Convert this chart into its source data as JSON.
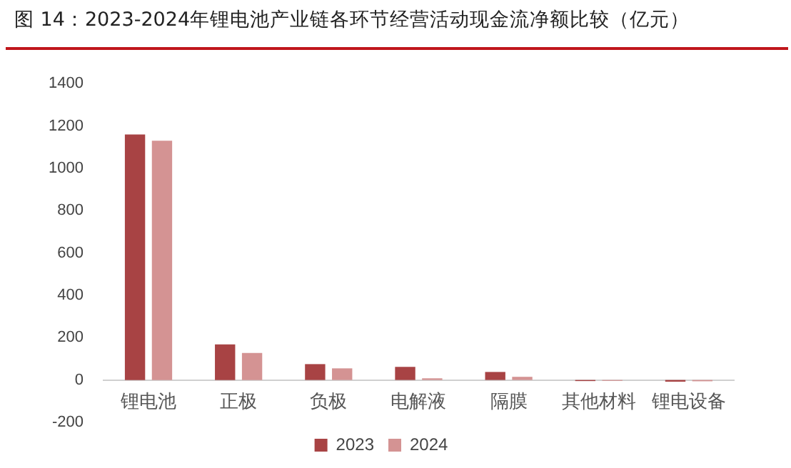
{
  "chart_data": {
    "type": "bar",
    "title": "图 14：2023-2024年锂电池产业链各环节经营活动现金流净额比较（亿元）",
    "categories": [
      "锂电池",
      "正极",
      "负极",
      "电解液",
      "隔膜",
      "其他材料",
      "锂电设备"
    ],
    "series": [
      {
        "name": "2023",
        "color": "#a84344",
        "values": [
          1160,
          168,
          75,
          62,
          38,
          -5,
          -8
        ]
      },
      {
        "name": "2024",
        "color": "#d49393",
        "values": [
          1130,
          128,
          55,
          8,
          15,
          -4,
          -6
        ]
      }
    ],
    "ylim": [
      -200,
      1400
    ],
    "yticks": [
      -200,
      0,
      200,
      400,
      600,
      800,
      1000,
      1200,
      1400
    ],
    "grid": false,
    "legend": "bottom"
  }
}
